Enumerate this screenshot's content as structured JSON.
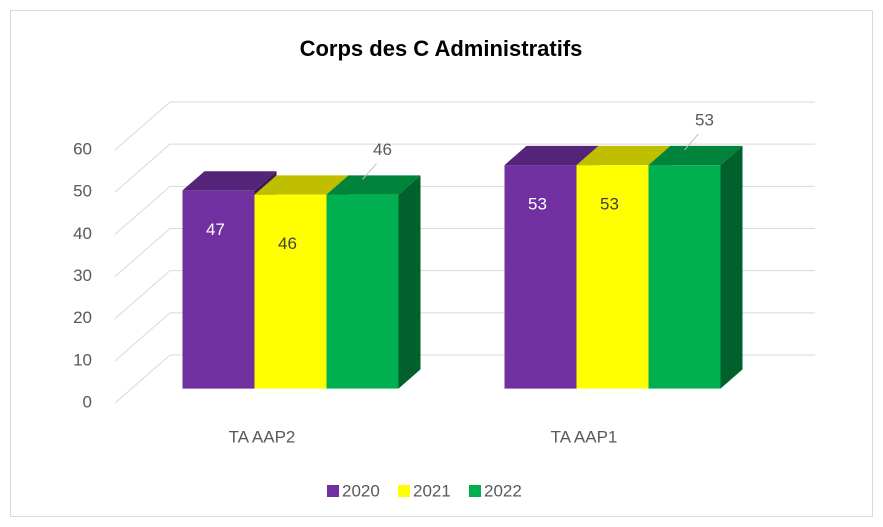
{
  "chart_data": {
    "type": "bar3d",
    "title": "Corps des C Administratifs",
    "categories": [
      "TA AAP2",
      "TA AAP1"
    ],
    "series": [
      {
        "name": "2020",
        "color": "#7030a0",
        "values": [
          47,
          53
        ]
      },
      {
        "name": "2021",
        "color": "#ffff00",
        "values": [
          46,
          53
        ]
      },
      {
        "name": "2022",
        "color": "#00b050",
        "values": [
          46,
          53
        ]
      }
    ],
    "ylim": [
      0,
      60
    ],
    "yticks": [
      0,
      10,
      20,
      30,
      40,
      50,
      60
    ],
    "grid": true,
    "legend": "bottom"
  }
}
